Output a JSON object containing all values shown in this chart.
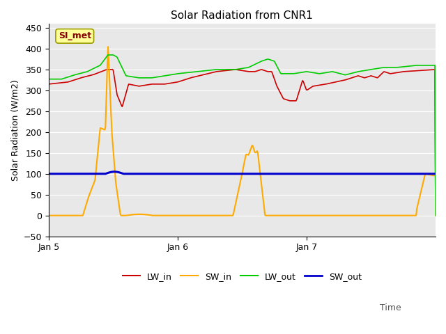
{
  "title": "Solar Radiation from CNR1",
  "ylabel": "Solar Radiation (W/m2)",
  "time_label": "Time",
  "annotation": "SI_met",
  "ylim": [
    -50,
    460
  ],
  "xtick_positions": [
    0,
    1,
    2
  ],
  "xtick_labels": [
    "Jan 5",
    "Jan 6",
    "Jan 7"
  ],
  "colors": {
    "LW_in": "#cc0000",
    "SW_in": "#ffaa00",
    "LW_out": "#00cc00",
    "SW_out": "#0000cc"
  },
  "bg_color": "#e8e8e8",
  "annotation_box_color": "#ffff99",
  "annotation_text_color": "#880000",
  "annotation_edge_color": "#999900"
}
